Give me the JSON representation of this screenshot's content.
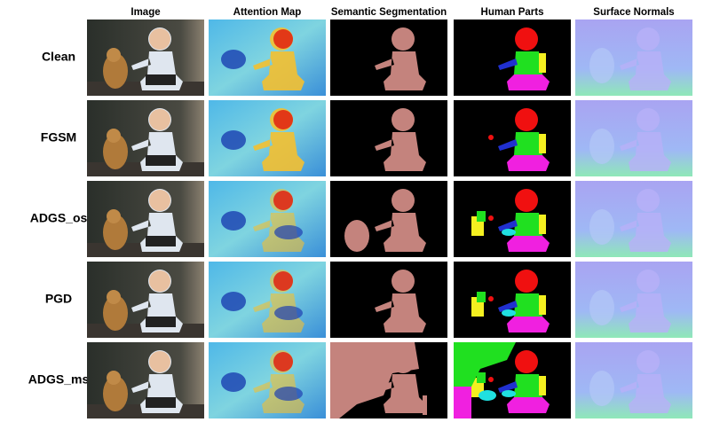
{
  "figure": {
    "columns": [
      "Image",
      "Attention Map",
      "Semantic Segmentation",
      "Human Parts",
      "Surface Normals"
    ],
    "rows": [
      "Clean",
      "FGSM",
      "ADGS_os",
      "PGD",
      "ADGS_ms"
    ]
  }
}
